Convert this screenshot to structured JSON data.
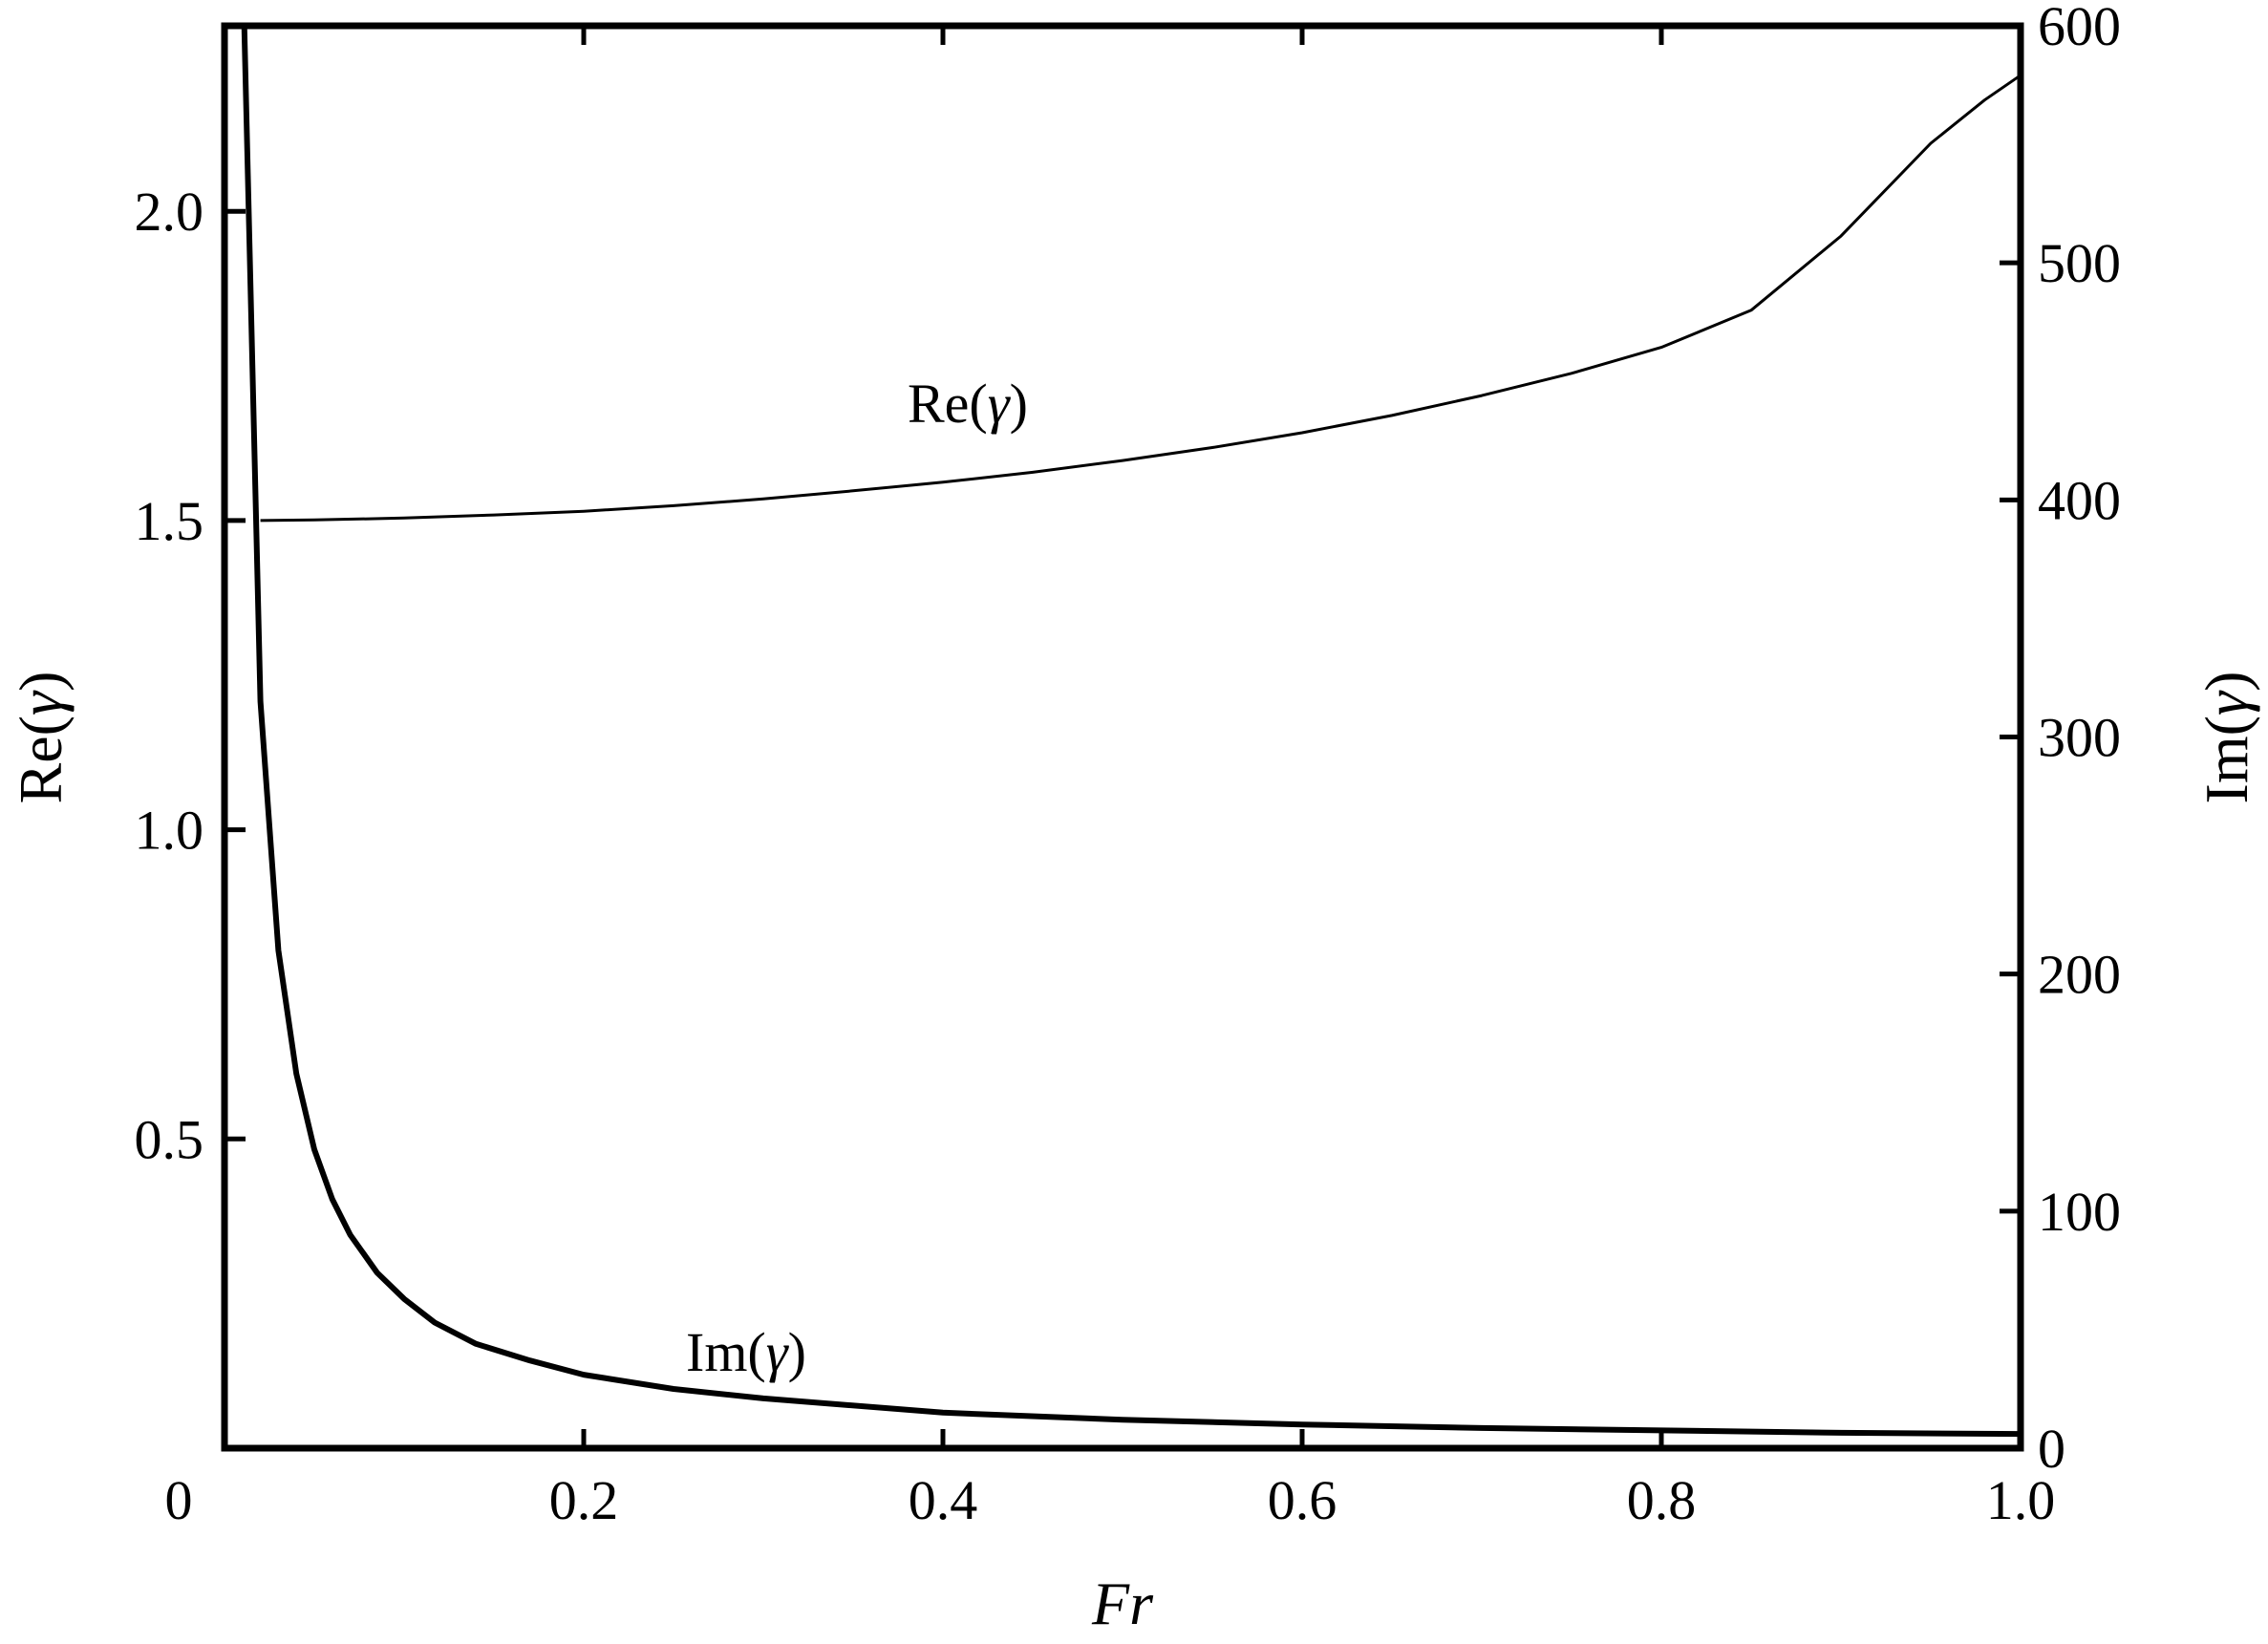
{
  "chart_data": {
    "type": "line",
    "title": "",
    "xlabel": "Fr",
    "ylabel": "Re(γ)",
    "ylabel_right": "Im(γ)",
    "xlim": [
      0,
      1.0
    ],
    "ylim": [
      0,
      2.3
    ],
    "ylim_right": [
      0,
      600
    ],
    "grid": false,
    "legend": "none (inline curve labels)",
    "x_ticks": [
      "0",
      "0.2",
      "0.4",
      "0.6",
      "0.8",
      "1.0"
    ],
    "y_ticks_left": [
      "0.5",
      "1.0",
      "1.5",
      "2.0"
    ],
    "y_ticks_right": [
      "0",
      "100",
      "200",
      "300",
      "400",
      "500",
      "600"
    ],
    "annotations": [
      {
        "text": "Re(γ)",
        "near_x": 0.42,
        "near_y_left": 1.67
      },
      {
        "text": "Im(γ)",
        "near_x": 0.3,
        "near_y_right": 38
      }
    ],
    "series": [
      {
        "name": "Re(γ)",
        "axis": "left",
        "line_width": "thin",
        "x": [
          0.02,
          0.05,
          0.1,
          0.15,
          0.2,
          0.25,
          0.3,
          0.35,
          0.4,
          0.45,
          0.5,
          0.55,
          0.6,
          0.65,
          0.7,
          0.75,
          0.8,
          0.85,
          0.9,
          0.95,
          0.98,
          1.0
        ],
        "values": [
          1.5,
          1.501,
          1.504,
          1.509,
          1.515,
          1.524,
          1.535,
          1.548,
          1.562,
          1.578,
          1.597,
          1.618,
          1.642,
          1.67,
          1.702,
          1.738,
          1.78,
          1.84,
          1.96,
          2.11,
          2.18,
          2.22
        ]
      },
      {
        "name": "Im(γ)",
        "axis": "right",
        "line_width": "thick",
        "x": [
          0.011,
          0.02,
          0.03,
          0.04,
          0.05,
          0.06,
          0.07,
          0.085,
          0.1,
          0.117,
          0.14,
          0.17,
          0.2,
          0.25,
          0.3,
          0.4,
          0.5,
          0.6,
          0.7,
          0.8,
          0.9,
          1.0
        ],
        "values": [
          600,
          315,
          210,
          158,
          126,
          105,
          90,
          74,
          63,
          53,
          44,
          37,
          31,
          25,
          21,
          15,
          12,
          10,
          8.5,
          7.5,
          6.5,
          6
        ]
      }
    ]
  },
  "axes": {
    "x_title": "Fr",
    "y_left_title_prefix": "Re(",
    "y_right_title_prefix": "Im(",
    "gamma": "γ",
    "close_paren": ")"
  },
  "labels": {
    "re_prefix": "Re(",
    "im_prefix": "Im(",
    "gamma": "γ",
    "close_paren": ")"
  }
}
